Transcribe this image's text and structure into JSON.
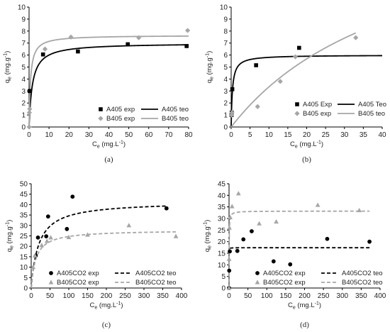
{
  "chart_data": [
    {
      "id": "a",
      "type": "scatter",
      "caption": "(a)",
      "xlabel": "C",
      "xlabel_sub": "e",
      "xlabel_unit": " (mg.L",
      "ylabel": "q",
      "ylabel_sub": "e",
      "ylabel_unit": " (mg.g",
      "unit_exp": "-1",
      "xlim": [
        0,
        80
      ],
      "ylim": [
        0,
        10
      ],
      "xticks": [
        0,
        10,
        20,
        30,
        40,
        50,
        60,
        70,
        80
      ],
      "yticks": [
        0,
        1,
        2,
        3,
        4,
        5,
        6,
        7,
        8,
        9,
        10
      ],
      "grid": false,
      "legend_position": "bottom-right",
      "series": [
        {
          "name": "A405 exp",
          "kind": "points",
          "marker": "square",
          "color": "#000000",
          "x": [
            0.3,
            7.0,
            24.5,
            49.5,
            79.0
          ],
          "y": [
            3.0,
            6.05,
            6.3,
            6.9,
            6.75
          ]
        },
        {
          "name": "A405 teo",
          "kind": "curve",
          "dash": "solid",
          "color": "#000000",
          "model": "langmuir",
          "qmax": 7.0,
          "K": 0.6,
          "xmax": 80
        },
        {
          "name": "B405 exp",
          "kind": "points",
          "marker": "diamond",
          "color": "#a6a6a6",
          "x": [
            0.05,
            0.15,
            0.3,
            8.0,
            21.0,
            55.0,
            79.5
          ],
          "y": [
            0.0,
            1.2,
            1.5,
            6.5,
            7.5,
            7.45,
            8.05
          ]
        },
        {
          "name": "B405 teo",
          "kind": "curve",
          "dash": "solid",
          "color": "#a6a6a6",
          "model": "langmuir",
          "qmax": 7.65,
          "K": 1.4,
          "xmax": 80
        }
      ]
    },
    {
      "id": "b",
      "type": "scatter",
      "caption": "(b)",
      "xlabel": "C",
      "xlabel_sub": "e",
      "xlabel_unit": " (mg.L",
      "ylabel": "q",
      "ylabel_sub": "e",
      "ylabel_unit": " (mg.g",
      "unit_exp": "-1",
      "xlim": [
        0,
        40
      ],
      "ylim": [
        0,
        10
      ],
      "xticks": [
        0,
        5,
        10,
        15,
        20,
        25,
        30,
        35,
        40
      ],
      "yticks": [
        0,
        1,
        2,
        3,
        4,
        5,
        6,
        7,
        8,
        9,
        10
      ],
      "grid": false,
      "legend_position": "bottom-right",
      "series": [
        {
          "name": "A405 Exp",
          "kind": "points",
          "marker": "square",
          "color": "#000000",
          "x": [
            0.1,
            0.15,
            0.3,
            6.6,
            18.0
          ],
          "y": [
            1.0,
            1.2,
            3.15,
            5.15,
            6.6
          ]
        },
        {
          "name": "A405 Teo",
          "kind": "curve",
          "dash": "solid",
          "color": "#000000",
          "model": "langmuir",
          "qmax": 6.0,
          "K": 3.0,
          "xmax": 40
        },
        {
          "name": "B405 exp",
          "kind": "points",
          "marker": "diamond",
          "color": "#a6a6a6",
          "x": [
            0.1,
            0.2,
            7.0,
            13.0,
            17.0,
            33.0
          ],
          "y": [
            1.0,
            1.2,
            1.7,
            3.8,
            5.85,
            7.45
          ]
        },
        {
          "name": "B405 teo",
          "kind": "curve",
          "dash": "solid",
          "color": "#a6a6a6",
          "model": "langmuir",
          "qmax": 18.9,
          "K": 0.0215,
          "xmax": 33
        }
      ]
    },
    {
      "id": "c",
      "type": "scatter",
      "caption": "(c)",
      "xlabel": "C",
      "xlabel_sub": "e",
      "xlabel_unit": " (mg.L",
      "ylabel": "q",
      "ylabel_sub": "e",
      "ylabel_unit": " (mg.g",
      "unit_exp": "-1",
      "xlim": [
        0,
        400
      ],
      "ylim": [
        0,
        50
      ],
      "xticks": [
        0,
        50,
        100,
        150,
        200,
        250,
        300,
        350,
        400
      ],
      "yticks": [
        0,
        5,
        10,
        15,
        20,
        25,
        30,
        35,
        40,
        45,
        50
      ],
      "grid": false,
      "legend_position": "bottom",
      "series": [
        {
          "name": "A405CO2 exp",
          "kind": "points",
          "marker": "circle",
          "color": "#000000",
          "x": [
            12,
            18,
            40,
            45,
            95,
            110,
            360
          ],
          "y": [
            15.5,
            24.2,
            24.8,
            34.3,
            28.3,
            43.8,
            38.2
          ]
        },
        {
          "name": "A405CO2 teo",
          "kind": "curve",
          "dash": "dashed",
          "color": "#000000",
          "model": "langmuir",
          "qmax": 41.5,
          "K": 0.05,
          "xmax": 360
        },
        {
          "name": "B405CO2 exp",
          "kind": "points",
          "marker": "triangle",
          "color": "#a6a6a6",
          "x": [
            5,
            10,
            28,
            42,
            52,
            100,
            150,
            260,
            385
          ],
          "y": [
            10.0,
            15.5,
            20.5,
            22.5,
            24.2,
            24.3,
            25.5,
            30.0,
            24.8
          ]
        },
        {
          "name": "B405CO2 teo",
          "kind": "curve",
          "dash": "dashed",
          "color": "#a6a6a6",
          "model": "langmuir",
          "qmax": 27.8,
          "K": 0.08,
          "xmax": 385
        }
      ]
    },
    {
      "id": "d",
      "type": "scatter",
      "caption": "(d)",
      "xlabel": "C",
      "xlabel_sub": "e",
      "xlabel_unit": " (mg.L",
      "ylabel": "q",
      "ylabel_sub": "e",
      "ylabel_unit": " (mg.g",
      "unit_exp": "-1",
      "xlim": [
        0,
        400
      ],
      "ylim": [
        0,
        45
      ],
      "xticks": [
        0,
        50,
        100,
        150,
        200,
        250,
        300,
        350,
        400
      ],
      "yticks": [
        0,
        5,
        10,
        15,
        20,
        25,
        30,
        35,
        40,
        45
      ],
      "grid": false,
      "legend_position": "bottom",
      "series": [
        {
          "name": "A405CO2 exp",
          "kind": "points",
          "marker": "circle",
          "color": "#000000",
          "x": [
            0,
            0.5,
            2,
            22,
            38,
            60,
            118,
            162,
            260,
            372
          ],
          "y": [
            0,
            7.5,
            15.8,
            16.0,
            21.0,
            24.5,
            11.5,
            10.2,
            21.2,
            20.0
          ]
        },
        {
          "name": "A405CO2 teo",
          "kind": "curve",
          "dash": "dashed",
          "color": "#000000",
          "model": "langmuir",
          "qmax": 17.4,
          "K": 20,
          "xmax": 372
        },
        {
          "name": "B405CO2 exp",
          "kind": "points",
          "marker": "triangle",
          "color": "#a6a6a6",
          "x": [
            0,
            0.3,
            1,
            3,
            8,
            25,
            80,
            125,
            235,
            345
          ],
          "y": [
            0,
            12.5,
            26.0,
            30.5,
            35.2,
            40.8,
            27.8,
            28.6,
            35.8,
            33.5
          ]
        },
        {
          "name": "B405CO2 teo",
          "kind": "curve",
          "dash": "dashed",
          "color": "#a6a6a6",
          "model": "langmuir",
          "qmax": 33.2,
          "K": 3,
          "xmax": 372
        }
      ]
    }
  ]
}
